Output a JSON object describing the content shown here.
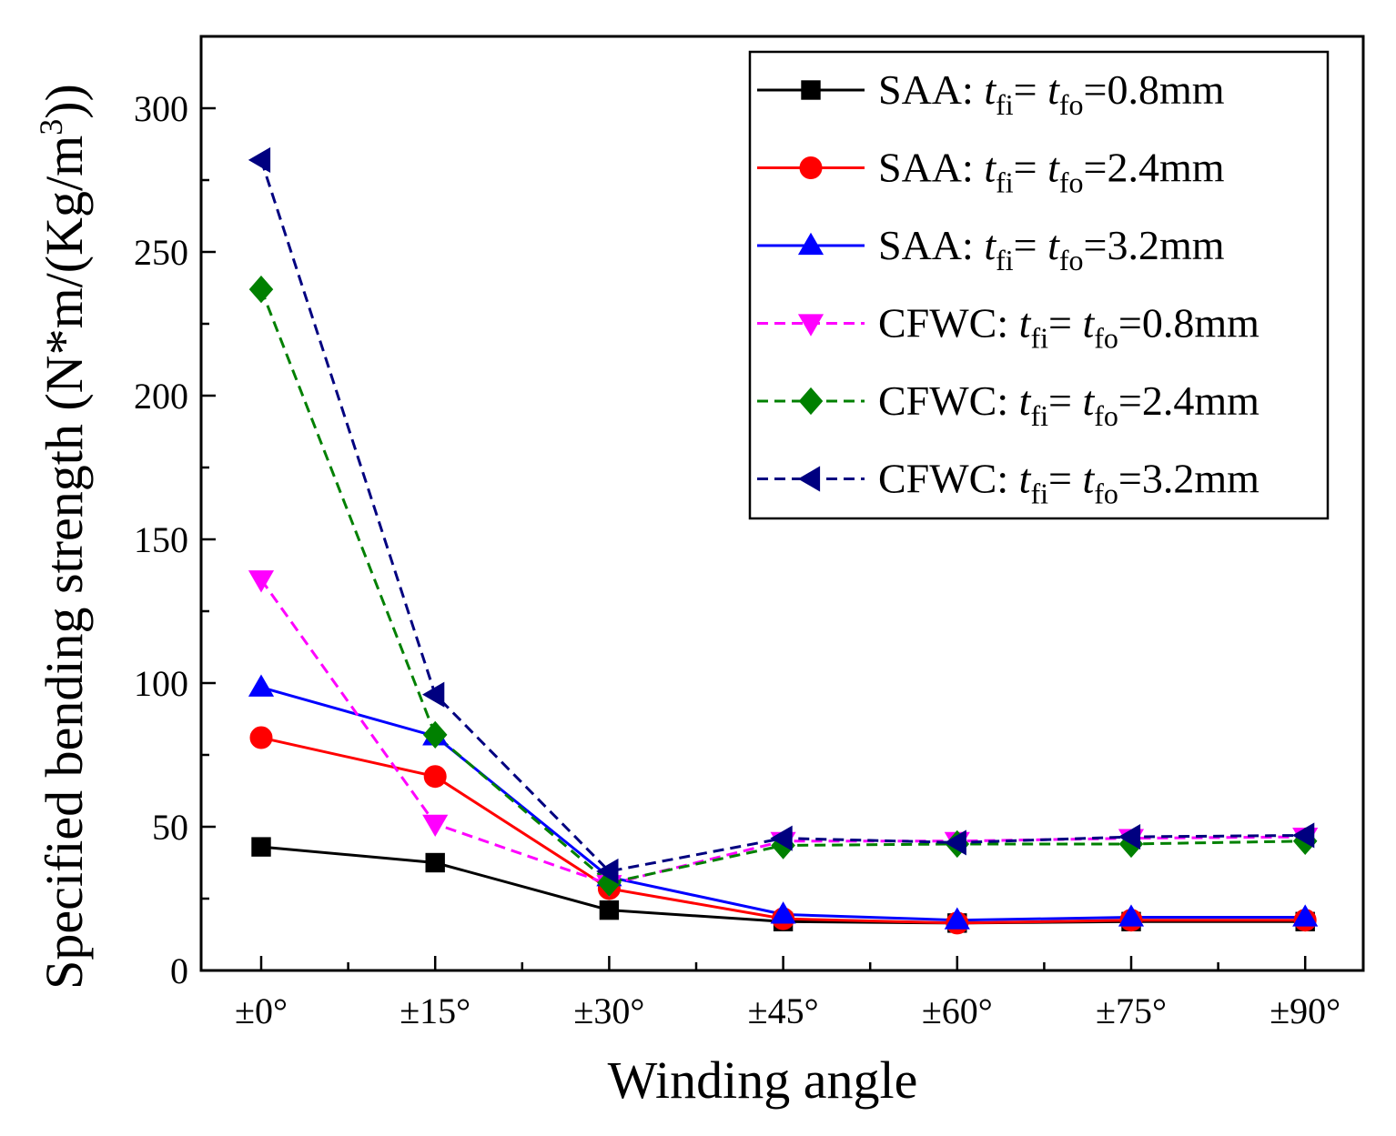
{
  "chart_data": {
    "type": "line",
    "title": "",
    "xlabel": "Winding angle",
    "ylabel": "Specified bending strength (N*m/(Kg/m",
    "ylabel_sup": "3",
    "ylabel_end": "))",
    "categories": [
      "±0°",
      "±15°",
      "±30°",
      "±45°",
      "±60°",
      "±75°",
      "±90°"
    ],
    "yticks": [
      "0",
      "50",
      "100",
      "150",
      "200",
      "250",
      "300"
    ],
    "ylim": [
      0,
      325
    ],
    "legend_position": "top-right",
    "series": [
      {
        "name": "SAA",
        "t1": "t",
        "s1": "fi",
        "eq": "= ",
        "t2": "t",
        "s2": "fo",
        "val": "=0.8mm",
        "color": "#000000",
        "dash": "solid",
        "marker": "square",
        "values": [
          43,
          37.5,
          21,
          17,
          16.5,
          17,
          17
        ]
      },
      {
        "name": "SAA",
        "t1": "t",
        "s1": "fi",
        "eq": "= ",
        "t2": "t",
        "s2": "fo",
        "val": "=2.4mm",
        "color": "#ff0000",
        "dash": "solid",
        "marker": "circle",
        "values": [
          81,
          67.5,
          28.5,
          18,
          16.5,
          17.5,
          17.5
        ]
      },
      {
        "name": "SAA",
        "t1": "t",
        "s1": "fi",
        "eq": "= ",
        "t2": "t",
        "s2": "fo",
        "val": "=3.2mm",
        "color": "#0000ff",
        "dash": "solid",
        "marker": "triangle-up",
        "values": [
          98.5,
          81.5,
          32.5,
          19.5,
          17.5,
          18.5,
          18.5
        ]
      },
      {
        "name": "CFWC",
        "t1": "t",
        "s1": "fi",
        "eq": "= ",
        "t2": "t",
        "s2": "fo",
        "val": "=0.8mm",
        "color": "#ff00ff",
        "dash": "dashed",
        "marker": "triangle-down",
        "values": [
          136,
          51,
          30,
          45,
          45,
          46,
          46.5
        ]
      },
      {
        "name": "CFWC",
        "t1": "t",
        "s1": "fi",
        "eq": "= ",
        "t2": "t",
        "s2": "fo",
        "val": "=2.4mm",
        "color": "#008000",
        "dash": "dashed",
        "marker": "diamond",
        "values": [
          237,
          82,
          30.5,
          43.5,
          44,
          44,
          45
        ]
      },
      {
        "name": "CFWC",
        "t1": "t",
        "s1": "fi",
        "eq": "= ",
        "t2": "t",
        "s2": "fo",
        "val": "=3.2mm",
        "color": "#000080",
        "dash": "dashed",
        "marker": "triangle-left",
        "values": [
          282,
          96,
          34.5,
          46,
          44.5,
          46.5,
          47
        ]
      }
    ]
  }
}
